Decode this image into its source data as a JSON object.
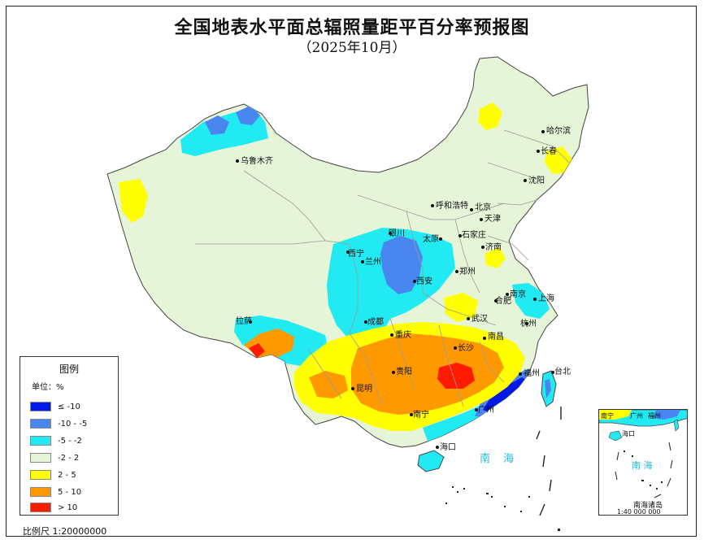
{
  "title": "全国地表水平面总辐照量距平百分率预报图",
  "subtitle": "（2025年10月）",
  "legend": {
    "title": "图例",
    "unit": "单位：%",
    "items": [
      {
        "label": "≤ -10",
        "color": "#0019e6"
      },
      {
        "label": "-10 - -5",
        "color": "#4a86f0"
      },
      {
        "label": "-5 - -2",
        "color": "#22eaf2"
      },
      {
        "label": "-2 - 2",
        "color": "#e6f5d8"
      },
      {
        "label": "2 - 5",
        "color": "#ffff00"
      },
      {
        "label": "5 - 10",
        "color": "#ff9900"
      },
      {
        "label": "> 10",
        "color": "#ff1a00"
      }
    ]
  },
  "scale": "比例尺 1:20000000",
  "sea_label": "南  海",
  "cities": [
    {
      "name": "哈尔滨"
    },
    {
      "name": "长春"
    },
    {
      "name": "沈阳"
    },
    {
      "name": "乌鲁木齐"
    },
    {
      "name": "呼和浩特"
    },
    {
      "name": "北京"
    },
    {
      "name": "天津"
    },
    {
      "name": "石家庄"
    },
    {
      "name": "太原"
    },
    {
      "name": "银川"
    },
    {
      "name": "济南"
    },
    {
      "name": "西宁"
    },
    {
      "name": "兰州"
    },
    {
      "name": "郑州"
    },
    {
      "name": "西安"
    },
    {
      "name": "南京"
    },
    {
      "name": "合肥"
    },
    {
      "name": "上海"
    },
    {
      "name": "拉萨"
    },
    {
      "name": "成都"
    },
    {
      "name": "武汉"
    },
    {
      "name": "重庆"
    },
    {
      "name": "长沙"
    },
    {
      "name": "南昌"
    },
    {
      "name": "杭州"
    },
    {
      "name": "贵阳"
    },
    {
      "name": "昆明"
    },
    {
      "name": "福州"
    },
    {
      "name": "台北"
    },
    {
      "name": "南宁"
    },
    {
      "name": "广州"
    },
    {
      "name": "海口"
    }
  ],
  "inset": {
    "name": "南海诸岛",
    "scale": "1:40 000 000",
    "sea_label": "南  海",
    "labels": [
      "南宁",
      "广州",
      "福州",
      "海口"
    ]
  },
  "colors": {
    "frame": "#222222",
    "border": "#9a9a9a",
    "sea_text": "#29b6d8"
  }
}
